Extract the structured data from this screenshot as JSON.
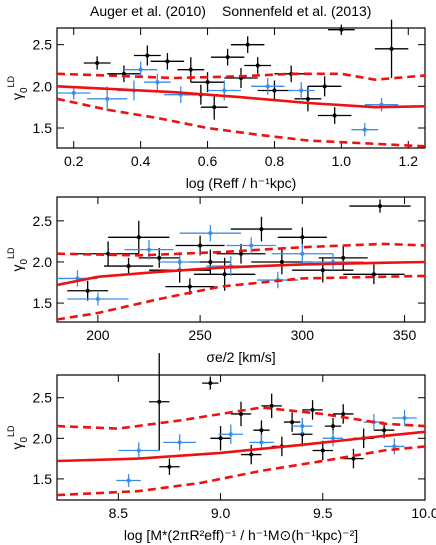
{
  "chart_data": [
    {
      "type": "scatter",
      "x_label": "log (Reff / h⁻¹kpc)",
      "y_label": {
        "base": "γ",
        "sub": "0",
        "sup": "LD"
      },
      "xlim": [
        0.15,
        1.25
      ],
      "xticks": [
        0.2,
        0.4,
        0.6,
        0.8,
        {
          "value": 1.0,
          "label": "1.0"
        },
        1.2
      ],
      "ylim": [
        1.26,
        2.7
      ],
      "yticks": [
        1.5,
        {
          "value": 2.0,
          "label": "2.0"
        },
        2.5
      ],
      "series": [
        {
          "name": "Auger et al. (2010)",
          "color": "#000000",
          "x": [
            0.27,
            0.35,
            0.42,
            0.48,
            0.55,
            0.6,
            0.62,
            0.66,
            0.7,
            0.75,
            0.8,
            0.85,
            0.9,
            0.95,
            0.98,
            1.0,
            1.15,
            0.72,
            0.58
          ],
          "values": [
            2.28,
            2.15,
            2.37,
            2.3,
            2.2,
            2.05,
            1.75,
            2.35,
            2.1,
            2.25,
            1.95,
            2.15,
            1.85,
            2.0,
            1.65,
            2.68,
            2.45,
            2.5,
            1.9
          ],
          "xerr": [
            0.04,
            0.05,
            0.04,
            0.05,
            0.04,
            0.05,
            0.04,
            0.05,
            0.05,
            0.04,
            0.05,
            0.05,
            0.04,
            0.05,
            0.05,
            0.04,
            0.05,
            0.05,
            0.05
          ],
          "yerr": [
            0.08,
            0.1,
            0.12,
            0.1,
            0.15,
            0.12,
            0.15,
            0.1,
            0.12,
            0.1,
            0.12,
            0.1,
            0.15,
            0.12,
            0.1,
            0.06,
            0.35,
            0.1,
            0.12
          ]
        },
        {
          "name": "Sonnenfeld et al. (2013)",
          "color": "#3a8ee6",
          "x": [
            0.2,
            0.3,
            0.38,
            0.45,
            0.52,
            0.65,
            0.78,
            0.88,
            1.07,
            1.12,
            0.4
          ],
          "values": [
            1.92,
            1.85,
            1.95,
            2.05,
            1.9,
            1.95,
            2.0,
            1.95,
            1.48,
            1.78,
            2.2
          ],
          "xerr": [
            0.05,
            0.06,
            0.05,
            0.04,
            0.05,
            0.05,
            0.05,
            0.04,
            0.04,
            0.05,
            0.05
          ],
          "yerr": [
            0.08,
            0.15,
            0.12,
            0.1,
            0.1,
            0.12,
            0.1,
            0.1,
            0.08,
            0.08,
            0.1
          ]
        }
      ],
      "lines": [
        {
          "color": "#ee1111",
          "dashed": false,
          "x": [
            0.15,
            0.3,
            0.5,
            0.7,
            0.9,
            1.1,
            1.25
          ],
          "values": [
            2.0,
            1.97,
            1.93,
            1.87,
            1.8,
            1.75,
            1.76
          ]
        },
        {
          "color": "#ee1111",
          "dashed": true,
          "x": [
            0.15,
            0.3,
            0.5,
            0.7,
            0.85,
            1.0,
            1.1,
            1.25
          ],
          "values": [
            2.15,
            2.13,
            2.1,
            2.12,
            2.15,
            2.15,
            2.08,
            2.13
          ]
        },
        {
          "color": "#ee1111",
          "dashed": true,
          "x": [
            0.15,
            0.3,
            0.45,
            0.6,
            0.75,
            0.9,
            1.05,
            1.25
          ],
          "values": [
            1.85,
            1.72,
            1.62,
            1.5,
            1.42,
            1.35,
            1.32,
            1.28
          ]
        }
      ]
    },
    {
      "type": "scatter",
      "x_label": "σe/2 [km/s]",
      "y_label": {
        "base": "γ",
        "sub": "0",
        "sup": "LD"
      },
      "xlim": [
        180,
        360
      ],
      "xticks": [
        200,
        250,
        300,
        350
      ],
      "ylim": [
        1.27,
        2.79
      ],
      "yticks": [
        1.5,
        {
          "value": 2.0,
          "label": "2.0"
        },
        2.5
      ],
      "series": [
        {
          "color": "#000000",
          "x": [
            195,
            205,
            215,
            220,
            230,
            240,
            250,
            255,
            262,
            270,
            280,
            290,
            300,
            310,
            320,
            338,
            335,
            245
          ],
          "values": [
            1.65,
            2.1,
            1.95,
            2.3,
            2.05,
            1.9,
            2.2,
            2.0,
            1.85,
            2.1,
            2.4,
            2.0,
            2.3,
            1.9,
            2.05,
            2.68,
            1.85,
            1.7
          ],
          "xerr": [
            10,
            15,
            12,
            15,
            10,
            15,
            12,
            10,
            15,
            12,
            15,
            15,
            12,
            15,
            12,
            15,
            15,
            12
          ],
          "yerr": [
            0.12,
            0.15,
            0.1,
            0.2,
            0.12,
            0.15,
            0.12,
            0.15,
            0.2,
            0.12,
            0.15,
            0.15,
            0.12,
            0.15,
            0.15,
            0.08,
            0.12,
            0.1
          ]
        },
        {
          "color": "#3a8ee6",
          "x": [
            190,
            200,
            225,
            240,
            255,
            265,
            275,
            288,
            300,
            315
          ],
          "values": [
            1.8,
            1.55,
            2.15,
            2.0,
            2.35,
            1.95,
            2.2,
            1.78,
            2.1,
            2.0
          ],
          "xerr": [
            10,
            15,
            12,
            10,
            15,
            12,
            12,
            10,
            15,
            15
          ],
          "yerr": [
            0.1,
            0.08,
            0.12,
            0.12,
            0.1,
            0.12,
            0.1,
            0.1,
            0.12,
            0.1
          ]
        }
      ],
      "lines": [
        {
          "color": "#ee1111",
          "dashed": false,
          "x": [
            180,
            200,
            230,
            260,
            300,
            360
          ],
          "values": [
            1.72,
            1.82,
            1.88,
            1.93,
            1.97,
            2.0
          ]
        },
        {
          "color": "#ee1111",
          "dashed": true,
          "x": [
            180,
            220,
            260,
            300,
            340,
            360
          ],
          "values": [
            2.1,
            2.08,
            2.12,
            2.18,
            2.22,
            2.2
          ]
        },
        {
          "color": "#ee1111",
          "dashed": true,
          "x": [
            180,
            200,
            230,
            260,
            300,
            360
          ],
          "values": [
            1.3,
            1.38,
            1.55,
            1.7,
            1.8,
            1.83
          ]
        }
      ]
    },
    {
      "type": "scatter",
      "x_label": "log [M*(2πR²eff)⁻¹ / h⁻¹M⊙(h⁻¹kpc)⁻²]",
      "y_label": {
        "base": "γ",
        "sub": "0",
        "sup": "LD"
      },
      "xlim": [
        8.2,
        10.0
      ],
      "xticks": [
        8.5,
        {
          "value": 9.0,
          "label": "9.0"
        },
        9.5,
        {
          "value": 10.0,
          "label": "10.0"
        }
      ],
      "ylim": [
        1.24,
        2.78
      ],
      "yticks": [
        1.5,
        {
          "value": 2.0,
          "label": "2.0"
        },
        2.5
      ],
      "series": [
        {
          "color": "#000000",
          "x": [
            8.7,
            8.75,
            8.95,
            9.0,
            9.1,
            9.15,
            9.2,
            9.25,
            9.3,
            9.35,
            9.4,
            9.45,
            9.5,
            9.55,
            9.6,
            9.7,
            9.8,
            9.65
          ],
          "values": [
            2.45,
            1.65,
            2.68,
            2.0,
            2.3,
            1.8,
            2.1,
            2.4,
            1.9,
            2.2,
            2.05,
            2.35,
            1.85,
            2.15,
            2.3,
            2.0,
            2.1,
            1.75
          ],
          "xerr": [
            0.05,
            0.05,
            0.04,
            0.05,
            0.05,
            0.05,
            0.04,
            0.05,
            0.05,
            0.04,
            0.05,
            0.05,
            0.05,
            0.04,
            0.05,
            0.05,
            0.05,
            0.05
          ],
          "yerr": [
            0.6,
            0.1,
            0.08,
            0.15,
            0.15,
            0.12,
            0.12,
            0.15,
            0.12,
            0.12,
            0.15,
            0.12,
            0.12,
            0.1,
            0.12,
            0.12,
            0.1,
            0.12
          ]
        },
        {
          "color": "#3a8ee6",
          "x": [
            8.55,
            8.6,
            8.8,
            9.05,
            9.2,
            9.4,
            9.55,
            9.75,
            9.9,
            9.85
          ],
          "values": [
            1.48,
            1.85,
            1.95,
            2.05,
            1.95,
            2.15,
            2.0,
            2.2,
            2.25,
            1.9
          ],
          "xerr": [
            0.06,
            0.1,
            0.08,
            0.06,
            0.06,
            0.05,
            0.05,
            0.05,
            0.06,
            0.05
          ],
          "yerr": [
            0.08,
            0.1,
            0.1,
            0.12,
            0.1,
            0.1,
            0.1,
            0.1,
            0.1,
            0.1
          ]
        }
      ],
      "lines": [
        {
          "color": "#ee1111",
          "dashed": false,
          "x": [
            8.2,
            8.6,
            9.0,
            9.4,
            9.8,
            10.0
          ],
          "values": [
            1.72,
            1.75,
            1.82,
            1.92,
            2.03,
            2.08
          ]
        },
        {
          "color": "#ee1111",
          "dashed": true,
          "x": [
            8.2,
            8.5,
            8.8,
            9.0,
            9.2,
            9.5,
            9.8,
            10.0
          ],
          "values": [
            2.15,
            2.12,
            2.22,
            2.3,
            2.38,
            2.3,
            2.18,
            2.15
          ]
        },
        {
          "color": "#ee1111",
          "dashed": true,
          "x": [
            8.2,
            8.6,
            8.9,
            9.2,
            9.5,
            9.8,
            10.0
          ],
          "values": [
            1.3,
            1.35,
            1.45,
            1.6,
            1.72,
            1.85,
            1.9
          ]
        }
      ]
    }
  ]
}
